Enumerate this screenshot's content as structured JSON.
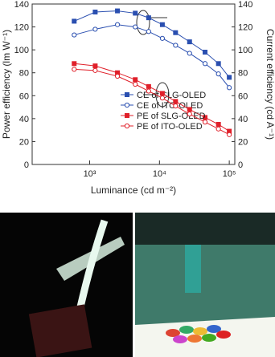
{
  "chart_data": {
    "type": "line",
    "x_label": "Luminance (cd m⁻²)",
    "y_label": "Power efficiency (lm W⁻¹)",
    "y2_label": "Current efficiency (cd A⁻¹)",
    "xscale": "log",
    "xlim": [
      150,
      120000
    ],
    "xticks": [
      {
        "value": 1000,
        "label": "10³"
      },
      {
        "value": 10000,
        "label": "10⁴"
      },
      {
        "value": 100000,
        "label": "10⁵"
      }
    ],
    "ylim": [
      0,
      140
    ],
    "yticks": [
      0,
      20,
      40,
      60,
      80,
      100,
      120,
      140
    ],
    "y2lim": [
      0,
      140
    ],
    "y2ticks": [
      0,
      20,
      40,
      60,
      80,
      100,
      120,
      140
    ],
    "x": [
      600,
      1200,
      2500,
      4500,
      7000,
      11000,
      17000,
      27000,
      45000,
      70000,
      100000
    ],
    "series": [
      {
        "name": "CE of SLG-OLED",
        "color": "#2a4fb0",
        "marker": "square-filled",
        "axis": "y2",
        "values": [
          125,
          133,
          134,
          132,
          128,
          122,
          115,
          107,
          98,
          88,
          76
        ]
      },
      {
        "name": "CE of ITO-OLED",
        "color": "#2a4fb0",
        "marker": "circle-open",
        "axis": "y2",
        "values": [
          113,
          118,
          122,
          120,
          116,
          110,
          104,
          97,
          88,
          79,
          67
        ]
      },
      {
        "name": "PE of SLG-OLED",
        "color": "#e0202a",
        "marker": "square-filled",
        "values": [
          88,
          86,
          80,
          74,
          68,
          62,
          55,
          48,
          41,
          35,
          29
        ]
      },
      {
        "name": "PE of ITO-OLED",
        "color": "#e0202a",
        "marker": "circle-open",
        "values": [
          83,
          82,
          77,
          70,
          64,
          58,
          51,
          44,
          37,
          31,
          26
        ]
      }
    ]
  }
}
